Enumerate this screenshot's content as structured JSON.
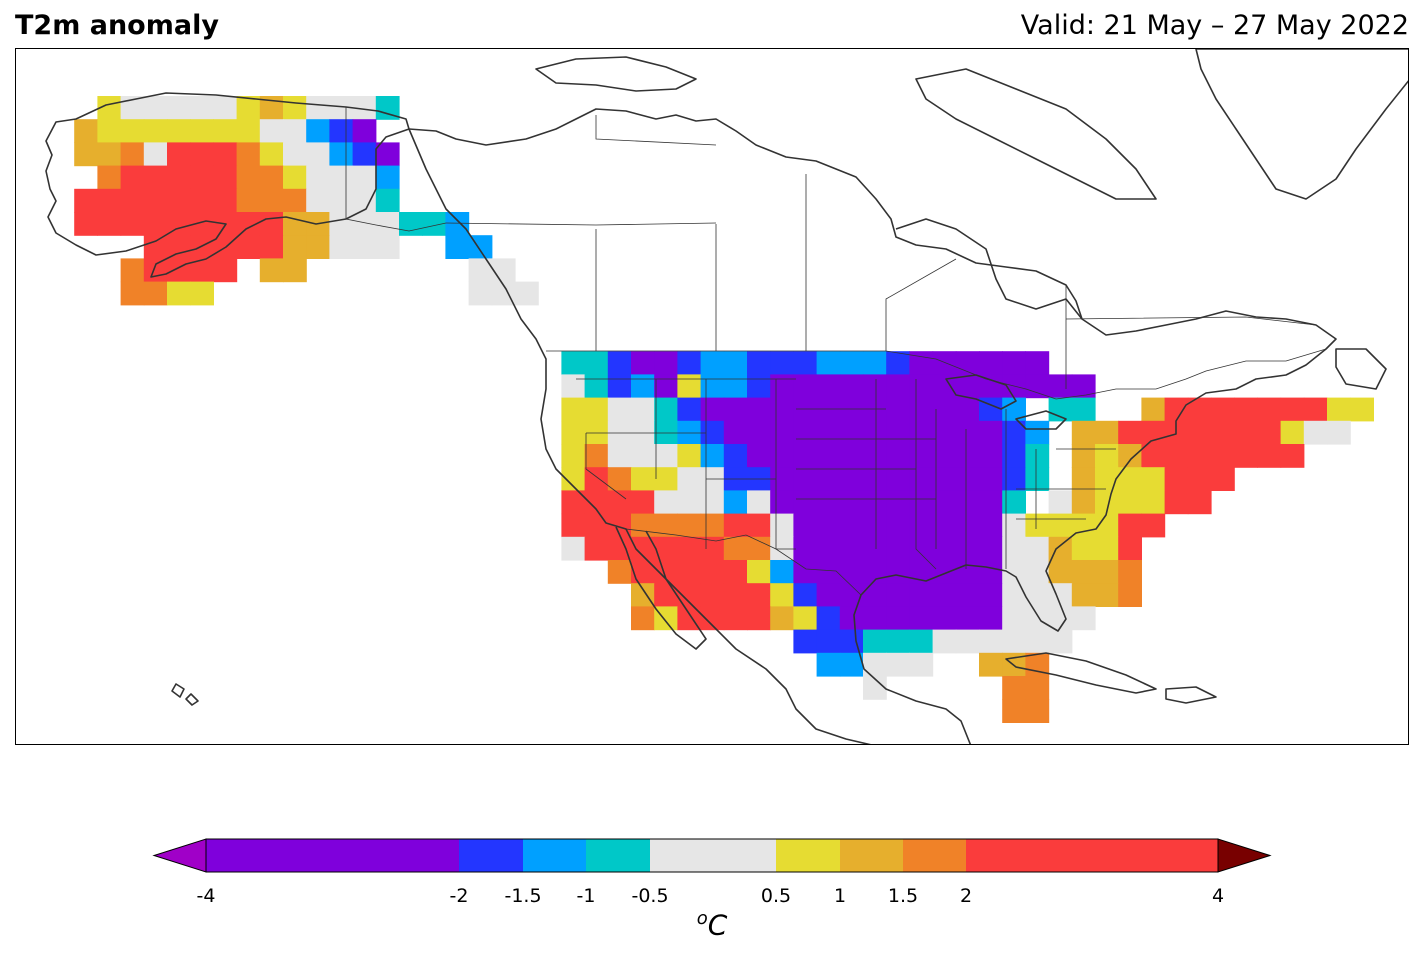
{
  "title": "T2m anomaly",
  "valid": "Valid: 21 May – 27 May 2022",
  "unit_base": "C",
  "unit_sup": "o",
  "colorbar": {
    "ticks": [
      "-4",
      "-2",
      "-1.5",
      "-1",
      "-0.5",
      "0.5",
      "1",
      "1.5",
      "2",
      "4"
    ],
    "bins": [
      {
        "from": -4,
        "to": -2,
        "color": "#7f00dc"
      },
      {
        "from": -2,
        "to": -1.5,
        "color": "#2336ff"
      },
      {
        "from": -1.5,
        "to": -1,
        "color": "#00a0ff"
      },
      {
        "from": -1,
        "to": -0.5,
        "color": "#00c8c8"
      },
      {
        "from": -0.5,
        "to": 0.5,
        "color": "#e6e6e6"
      },
      {
        "from": 0.5,
        "to": 1,
        "color": "#e6dc32"
      },
      {
        "from": 1,
        "to": 1.5,
        "color": "#e6af2d"
      },
      {
        "from": 1.5,
        "to": 2,
        "color": "#f08228"
      },
      {
        "from": 2,
        "to": 4,
        "color": "#fa3c3c"
      }
    ],
    "under_color": "#a000c8",
    "over_color": "#780000"
  },
  "palette": {
    "P": "#7f00dc",
    "B": "#2336ff",
    "L": "#00a0ff",
    "C": "#00c8c8",
    "W": "#e6e6e6",
    "Y": "#e6dc32",
    "G": "#e6af2d",
    "O": "#f08228",
    "R": "#fa3c3c"
  },
  "grid_regions": [
    {
      "name": "alaska",
      "col0": 0,
      "row0": 0,
      "rows": [
        "..YWWWWWYGYWWWC",
        ".GYYYYYYYWWLBP.",
        ".GGOWRRROYWWLBP",
        "..ORRRRROOYWWWL",
        ".RRRRRRROOOWWWC",
        ".RRRRRRRRRGGWWW",
        "....RRRRRRGGWWW.",
        "...ORRRR.GG",
        "...OOYY"
      ]
    },
    {
      "name": "southeast-alaska",
      "col0": 15,
      "row0": 5,
      "rows": [
        "CCL..",
        "..LL.",
        "...WW",
        "...WWW"
      ]
    },
    {
      "name": "conus",
      "col0": 22,
      "row0": 11,
      "rows": [
        "CCBPPBLLBBBLLLBPPPPPP",
        "WCBLPYLLBPPPPPPPPPPPPPP",
        "YYWWCBPPPPPPPPPPPPBL.CC..GRRRRRRRYY",
        "YYWWCLBPPPPPPPPPPPPBL.GGRRRRRRRYWW",
        "YOWWWYLBPPPPPPPPPPPBC.GYGRRRRRRR",
        "YROYYWWBBPPPPPPPPPPBC.GYYYRRR",
        "RRRRWWWLWPPPPPPPPPPC.WGYYYRR",
        "RRROOOORRWPPPPPPPPPWYYYYRR",
        "WRRRRRROOWPPPPPPPPPWWGYYR",
        "..ORRRRRYLPPPPPPPPPWWGGGO",
        "...GRRRRRYBPPPPPPPPWWWGGO",
        "...OYRRRRGYBPPPPPPPWWWW",
        "..........BBBCCCWWWWWW",
        "...........LLWWW..GGO",
        ".............W.....OO",
        "...................OO"
      ]
    }
  ]
}
